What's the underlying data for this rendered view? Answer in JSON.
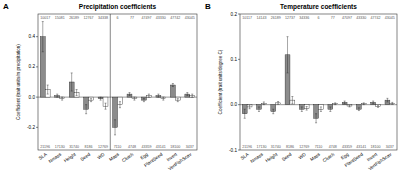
{
  "chart_data": [
    {
      "type": "bar",
      "panel_label": "A",
      "title": "Precipitation coefficients",
      "y_label": "Coefficient (trait units/m precipitation)",
      "categories": [
        "SLA",
        "Nmass",
        "Height",
        "Seed",
        "WD",
        "Mass",
        "Clutch",
        "Egg",
        "PlantSeed",
        "Invert",
        "VertFishScav"
      ],
      "series": [
        {
          "color": "#8c8c8c",
          "values": [
            0.4,
            0.01,
            0.1,
            -0.08,
            -0.01,
            -0.2,
            0.02,
            -0.02,
            0.01,
            0.08,
            0.02
          ],
          "errors": [
            0.1,
            0.01,
            0.06,
            0.03,
            0.01,
            0.05,
            0.01,
            0.01,
            0.01,
            0.01,
            0.01
          ]
        },
        {
          "color": "#ffffff",
          "values": [
            0.05,
            -0.01,
            0.03,
            -0.02,
            -0.06,
            -0.05,
            -0.01,
            0.01,
            -0.01,
            -0.02,
            0.01
          ],
          "errors": [
            0.03,
            0.01,
            0.02,
            0.01,
            0.02,
            0.02,
            0.01,
            0.01,
            0.01,
            0.01,
            0.01
          ]
        }
      ],
      "n_top": [
        10017,
        15081,
        26189,
        12767,
        34338,
        6,
        77,
        47497,
        43330,
        47742,
        43045
      ],
      "n_bottom": [
        21196,
        17130,
        31740,
        8186,
        12769,
        7110,
        4748,
        43359,
        43141,
        18100,
        3437
      ],
      "ylim": [
        -0.35,
        0.55
      ],
      "yticks": [
        -0.2,
        {
          "value": 0,
          "label": "0.0"
        },
        0.2,
        0.4
      ],
      "grid": false
    },
    {
      "type": "bar",
      "panel_label": "B",
      "title": "Temperature coefficients",
      "y_label": "Coefficient (trait units/degree C)",
      "categories": [
        "SLA",
        "Nmass",
        "Height",
        "Seed",
        "WD",
        "Mass",
        "Clutch",
        "Egg",
        "PlantSeed",
        "Invert",
        "VertFishScav"
      ],
      "series": [
        {
          "color": "#8c8c8c",
          "values": [
            -0.02,
            -0.01,
            -0.015,
            0.11,
            -0.01,
            -0.03,
            -0.01,
            0.005,
            -0.01,
            0.005,
            0.01
          ],
          "errors": [
            0.01,
            0.005,
            0.005,
            0.04,
            0.005,
            0.01,
            0.005,
            0.003,
            0.003,
            0.003,
            0.004
          ]
        },
        {
          "color": "#ffffff",
          "values": [
            -0.005,
            0.003,
            0.004,
            0.01,
            -0.008,
            -0.01,
            0.002,
            -0.003,
            0.002,
            -0.004,
            0.003
          ],
          "errors": [
            0.004,
            0.003,
            0.003,
            0.008,
            0.004,
            0.005,
            0.002,
            0.002,
            0.002,
            0.002,
            0.002
          ]
        }
      ],
      "n_top": [
        10117,
        14143,
        26189,
        12737,
        34336,
        6,
        77,
        47097,
        43330,
        47742,
        43045
      ],
      "n_bottom": [
        21196,
        17130,
        31740,
        8186,
        12769,
        7110,
        4748,
        43359,
        43141,
        18100,
        3437
      ],
      "ylim": [
        -0.1,
        0.2
      ],
      "yticks": [
        -0.1,
        {
          "value": 0,
          "label": "0.0"
        },
        0.1,
        0.2
      ],
      "grid": false
    }
  ]
}
